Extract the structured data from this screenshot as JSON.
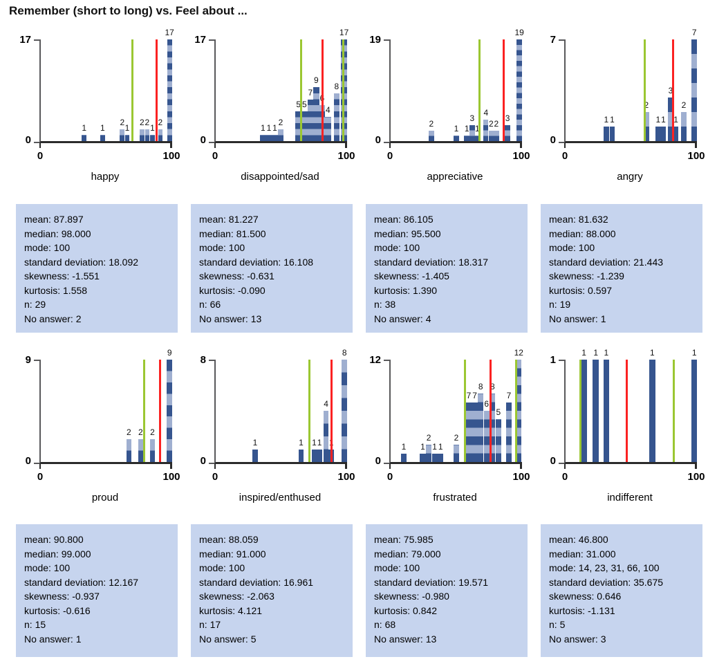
{
  "page_title": "Remember (short to long) vs. Feel about ...",
  "colors": {
    "bar_dark": "#36558f",
    "bar_light": "#9fafd0",
    "mean_line_red": "#fb2222",
    "sd_line_green": "#9bc732",
    "stats_box_bg": "#c6d4ee",
    "axis_gray": "#58585a",
    "axis_dark": "#2b2b2b"
  },
  "stats_labels": {
    "mean": "mean",
    "median": "median",
    "mode": "mode",
    "standard_deviation": "standard deviation",
    "skewness": "skewness",
    "kurtosis": "kurtosis",
    "n": "n",
    "no_answer": "No answer"
  },
  "chart_data": {
    "type": "bar",
    "subtype": "histogram-grid",
    "title": "Remember (short to long) vs. Feel about ...",
    "x_range": [
      0,
      100
    ],
    "x_tick_labels": [
      "0",
      "100"
    ],
    "y_zero_label": "0",
    "red_line_meaning": "mean",
    "green_line_meaning": "mean plus/minus one standard deviation",
    "legend_position": "none",
    "grid": false,
    "charts": [
      {
        "label": "happy",
        "y_max": 17,
        "bin_width": 3.6,
        "bars": [
          {
            "x": 33,
            "count": 1
          },
          {
            "x": 47,
            "count": 1
          },
          {
            "x": 62,
            "count": 2
          },
          {
            "x": 65.8,
            "count": 1
          },
          {
            "x": 77,
            "count": 2
          },
          {
            "x": 81,
            "count": 2
          },
          {
            "x": 85,
            "count": 1
          },
          {
            "x": 91,
            "count": 2
          },
          {
            "x": 98,
            "count": 17
          }
        ],
        "mean_line": 87.897,
        "sd_lines": [
          69.805,
          105.989
        ],
        "stats": {
          "mean": "87.897",
          "median": "98.000",
          "mode": "100",
          "standard_deviation": "18.092",
          "skewness": "-1.551",
          "kurtosis": "1.558",
          "n": "29",
          "no_answer": "2"
        }
      },
      {
        "label": "disappointed/sad",
        "y_max": 17,
        "bin_width": 4.5,
        "bars": [
          {
            "x": 36,
            "count": 1
          },
          {
            "x": 40.5,
            "count": 1
          },
          {
            "x": 45,
            "count": 1
          },
          {
            "x": 49.5,
            "count": 2
          },
          {
            "x": 63,
            "count": 5
          },
          {
            "x": 67.5,
            "count": 5
          },
          {
            "x": 72,
            "count": 7
          },
          {
            "x": 76.5,
            "count": 9
          },
          {
            "x": 81,
            "count": 6
          },
          {
            "x": 85.5,
            "count": 4
          },
          {
            "x": 92,
            "count": 8
          },
          {
            "x": 97.7,
            "count": 17
          }
        ],
        "mean_line": 81.227,
        "sd_lines": [
          65.119,
          97.335
        ],
        "stats": {
          "mean": "81.227",
          "median": "81.500",
          "mode": "100",
          "standard_deviation": "16.108",
          "skewness": "-0.631",
          "kurtosis": "-0.090",
          "n": "66",
          "no_answer": "13"
        }
      },
      {
        "label": "appreciative",
        "y_max": 19,
        "bin_width": 4,
        "bars": [
          {
            "x": 31,
            "count": 2
          },
          {
            "x": 50,
            "count": 1
          },
          {
            "x": 58,
            "count": 1
          },
          {
            "x": 62,
            "count": 3
          },
          {
            "x": 66,
            "count": 1
          },
          {
            "x": 72.5,
            "count": 4
          },
          {
            "x": 76.5,
            "count": 2
          },
          {
            "x": 80.5,
            "count": 2
          },
          {
            "x": 89,
            "count": 3
          },
          {
            "x": 98,
            "count": 19
          }
        ],
        "mean_line": 86.105,
        "sd_lines": [
          67.788,
          104.422
        ],
        "stats": {
          "mean": "86.105",
          "median": "95.500",
          "mode": "100",
          "standard_deviation": "18.317",
          "skewness": "-1.405",
          "kurtosis": "1.390",
          "n": "38",
          "no_answer": "4"
        }
      },
      {
        "label": "angry",
        "y_max": 7,
        "bin_width": 4,
        "bars": [
          {
            "x": 31,
            "count": 1
          },
          {
            "x": 35.5,
            "count": 1
          },
          {
            "x": 61.5,
            "count": 2
          },
          {
            "x": 70.5,
            "count": 1
          },
          {
            "x": 74.5,
            "count": 1
          },
          {
            "x": 80,
            "count": 3
          },
          {
            "x": 84,
            "count": 1
          },
          {
            "x": 90,
            "count": 2
          },
          {
            "x": 98,
            "count": 7
          }
        ],
        "mean_line": 81.632,
        "sd_lines": [
          60.189,
          103.075
        ],
        "stats": {
          "mean": "81.632",
          "median": "88.000",
          "mode": "100",
          "standard_deviation": "21.443",
          "skewness": "-1.239",
          "kurtosis": "0.597",
          "n": "19",
          "no_answer": "1"
        }
      },
      {
        "label": "proud",
        "y_max": 9,
        "bin_width": 4,
        "bars": [
          {
            "x": 67,
            "count": 2
          },
          {
            "x": 76,
            "count": 2
          },
          {
            "x": 85,
            "count": 2
          },
          {
            "x": 98,
            "count": 9
          }
        ],
        "mean_line": 90.8,
        "sd_lines": [
          78.633,
          102.967
        ],
        "stats": {
          "mean": "90.800",
          "median": "99.000",
          "mode": "100",
          "standard_deviation": "12.167",
          "skewness": "-0.937",
          "kurtosis": "-0.616",
          "n": "15",
          "no_answer": "1"
        }
      },
      {
        "label": "inspired/enthused",
        "y_max": 8,
        "bin_width": 4,
        "bars": [
          {
            "x": 30,
            "count": 1
          },
          {
            "x": 65,
            "count": 1
          },
          {
            "x": 75,
            "count": 1
          },
          {
            "x": 79,
            "count": 1
          },
          {
            "x": 84,
            "count": 4
          },
          {
            "x": 88,
            "count": 1
          },
          {
            "x": 98,
            "count": 8
          }
        ],
        "mean_line": 88.059,
        "sd_lines": [
          71.098,
          105.02
        ],
        "stats": {
          "mean": "88.059",
          "median": "91.000",
          "mode": "100",
          "standard_deviation": "16.961",
          "skewness": "-2.063",
          "kurtosis": "4.121",
          "n": "17",
          "no_answer": "5"
        }
      },
      {
        "label": "frustrated",
        "y_max": 12,
        "bin_width": 4.4,
        "bars": [
          {
            "x": 10,
            "count": 1
          },
          {
            "x": 24.5,
            "count": 1
          },
          {
            "x": 29,
            "count": 2
          },
          {
            "x": 33.5,
            "count": 1
          },
          {
            "x": 38,
            "count": 1
          },
          {
            "x": 50,
            "count": 2
          },
          {
            "x": 59.5,
            "count": 7
          },
          {
            "x": 64,
            "count": 7
          },
          {
            "x": 68.5,
            "count": 8
          },
          {
            "x": 73,
            "count": 6
          },
          {
            "x": 77.5,
            "count": 8
          },
          {
            "x": 82,
            "count": 5
          },
          {
            "x": 90,
            "count": 7
          },
          {
            "x": 97.5,
            "count": 12
          }
        ],
        "mean_line": 75.985,
        "sd_lines": [
          56.414,
          95.556
        ],
        "stats": {
          "mean": "75.985",
          "median": "79.000",
          "mode": "100",
          "standard_deviation": "19.571",
          "skewness": "-0.980",
          "kurtosis": "0.842",
          "n": "68",
          "no_answer": "13"
        }
      },
      {
        "label": "indifferent",
        "y_max": 1,
        "bin_width": 4.5,
        "bars": [
          {
            "x": 14,
            "count": 1
          },
          {
            "x": 23,
            "count": 1
          },
          {
            "x": 31,
            "count": 1
          },
          {
            "x": 66,
            "count": 1
          },
          {
            "x": 98,
            "count": 1
          }
        ],
        "mean_line": 46.8,
        "sd_lines": [
          11.125,
          82.475
        ],
        "stats": {
          "mean": "46.800",
          "median": "31.000",
          "mode": "14, 23, 31, 66, 100",
          "standard_deviation": "35.675",
          "skewness": "0.646",
          "kurtosis": "-1.131",
          "n": "5",
          "no_answer": "3"
        }
      }
    ]
  }
}
